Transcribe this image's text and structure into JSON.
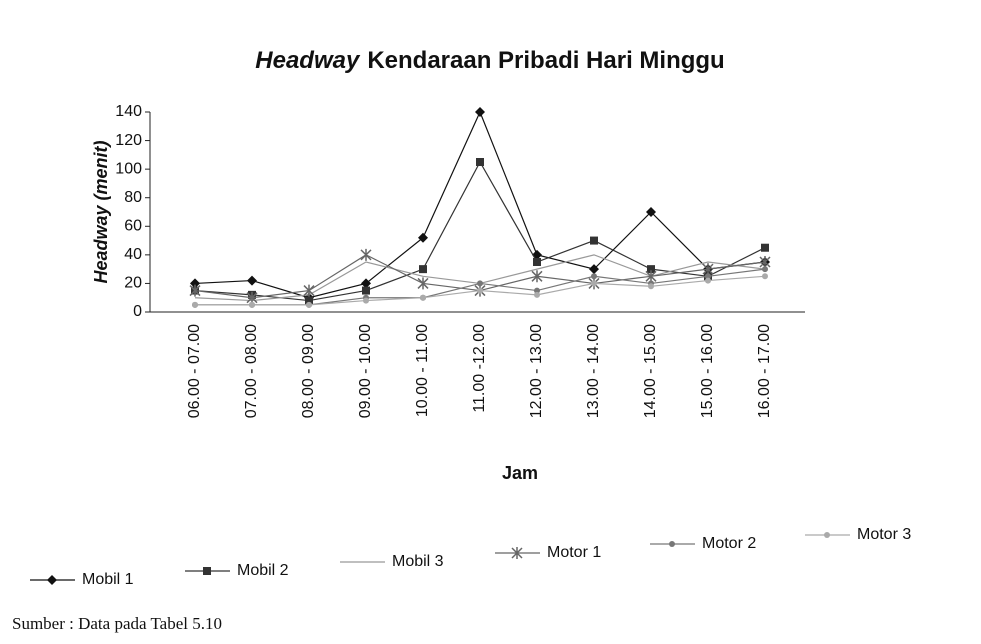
{
  "chart_data": {
    "type": "line",
    "title_em": "Headway",
    "title": "Kendaraan Pribadi Hari Minggu",
    "y_label": "Headway (menit)",
    "x_label": "Jam",
    "source": "Sumber : Data pada Tabel 5.10",
    "categories": [
      "06.00 - 07.00",
      "07.00 - 08.00",
      "08.00 - 09.00",
      "09.00 - 10.00",
      "10.00 - 11.00",
      "11.00 -12.00",
      "12.00 - 13.00",
      "13.00 - 14.00",
      "14.00 - 15.00",
      "15.00 - 16.00",
      "16.00 - 17.00"
    ],
    "series": [
      {
        "name": "Mobil 1",
        "color": "#111111",
        "marker": "diamond",
        "values": [
          20,
          22,
          10,
          20,
          52,
          140,
          40,
          30,
          70,
          30,
          35
        ]
      },
      {
        "name": "Mobil 2",
        "color": "#333333",
        "marker": "square",
        "values": [
          15,
          12,
          8,
          15,
          30,
          105,
          35,
          50,
          30,
          25,
          45
        ]
      },
      {
        "name": "Mobil 3",
        "color": "#999999",
        "marker": "none",
        "values": [
          10,
          8,
          12,
          35,
          25,
          20,
          30,
          40,
          25,
          35,
          30
        ]
      },
      {
        "name": "Motor 1",
        "color": "#666666",
        "marker": "star",
        "values": [
          15,
          10,
          15,
          40,
          20,
          15,
          25,
          20,
          25,
          30,
          35
        ]
      },
      {
        "name": "Motor 2",
        "color": "#777777",
        "marker": "dot",
        "values": [
          5,
          5,
          5,
          10,
          10,
          20,
          15,
          25,
          20,
          25,
          30
        ]
      },
      {
        "name": "Motor 3",
        "color": "#aaaaaa",
        "marker": "dot",
        "values": [
          5,
          5,
          5,
          8,
          10,
          15,
          12,
          20,
          18,
          22,
          25
        ]
      }
    ],
    "ylim": [
      0,
      140
    ],
    "yticks": [
      0,
      20,
      40,
      60,
      80,
      100,
      120,
      140
    ]
  }
}
